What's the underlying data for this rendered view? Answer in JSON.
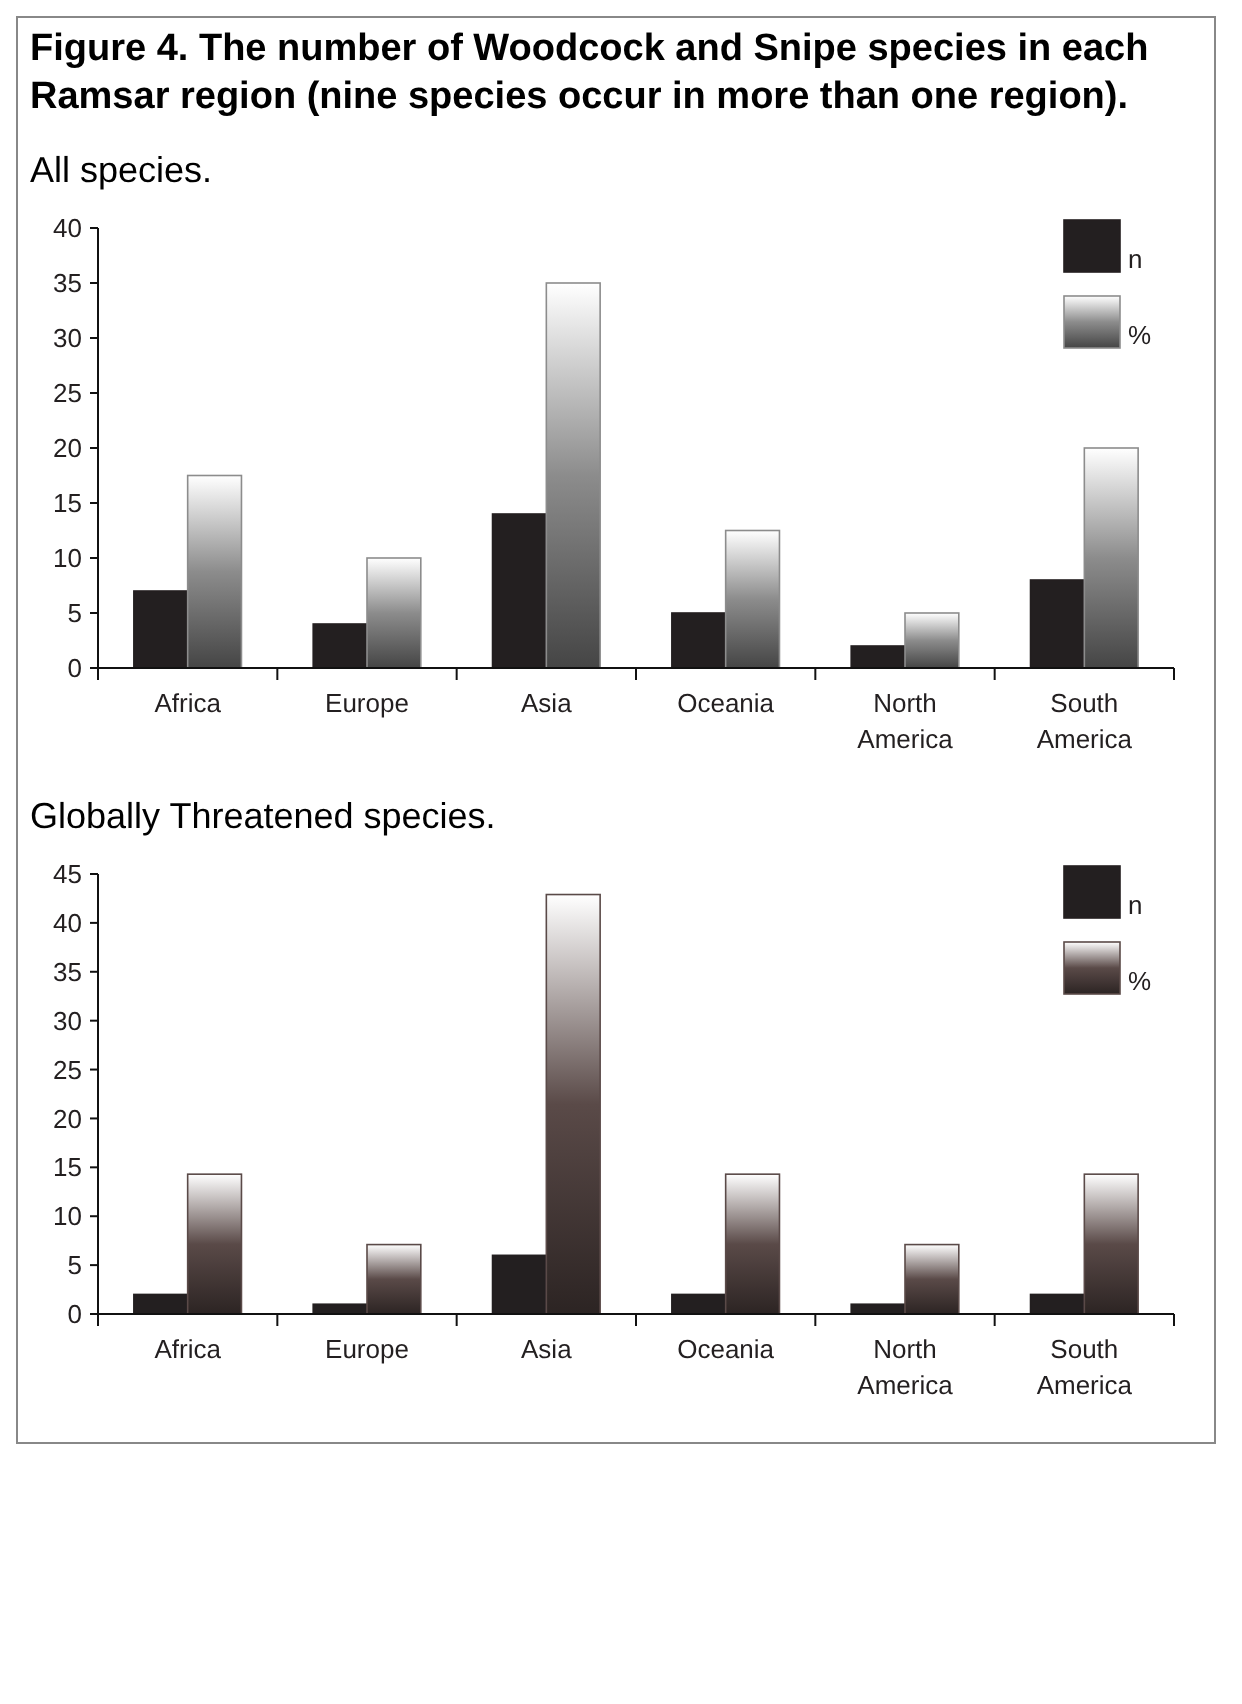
{
  "chart_data": [
    {
      "type": "bar",
      "title": "Figure 4. The number of Woodcock and Snipe species in each Ramsar region (nine species occur in more than one region).",
      "subtitle": "All species.",
      "categories": [
        "Africa",
        "Europe",
        "Asia",
        "Oceania",
        "North America",
        "South America"
      ],
      "series": [
        {
          "name": "n",
          "color": "#231f20",
          "values": [
            7,
            4,
            14,
            5,
            2,
            8
          ]
        },
        {
          "name": "%",
          "color": "#8c8c8c",
          "values": [
            17.5,
            10,
            35,
            12.5,
            5,
            20
          ]
        }
      ],
      "ylim": [
        0,
        40
      ],
      "yticks": [
        0,
        5,
        10,
        15,
        20,
        25,
        30,
        35,
        40
      ],
      "grid": false,
      "legend": "top right"
    },
    {
      "type": "bar",
      "subtitle": "Globally Threatened species.",
      "categories": [
        "Africa",
        "Europe",
        "Asia",
        "Oceania",
        "North America",
        "South America"
      ],
      "series": [
        {
          "name": "n",
          "color": "#231f20",
          "values": [
            2,
            1,
            6,
            2,
            1,
            2
          ]
        },
        {
          "name": "%",
          "color": "#5a4a48",
          "values": [
            14.3,
            7.1,
            42.9,
            14.3,
            7.1,
            14.3
          ]
        }
      ],
      "ylim": [
        0,
        45
      ],
      "yticks": [
        0,
        5,
        10,
        15,
        20,
        25,
        30,
        35,
        40,
        45
      ],
      "grid": false,
      "legend": "top right"
    }
  ]
}
